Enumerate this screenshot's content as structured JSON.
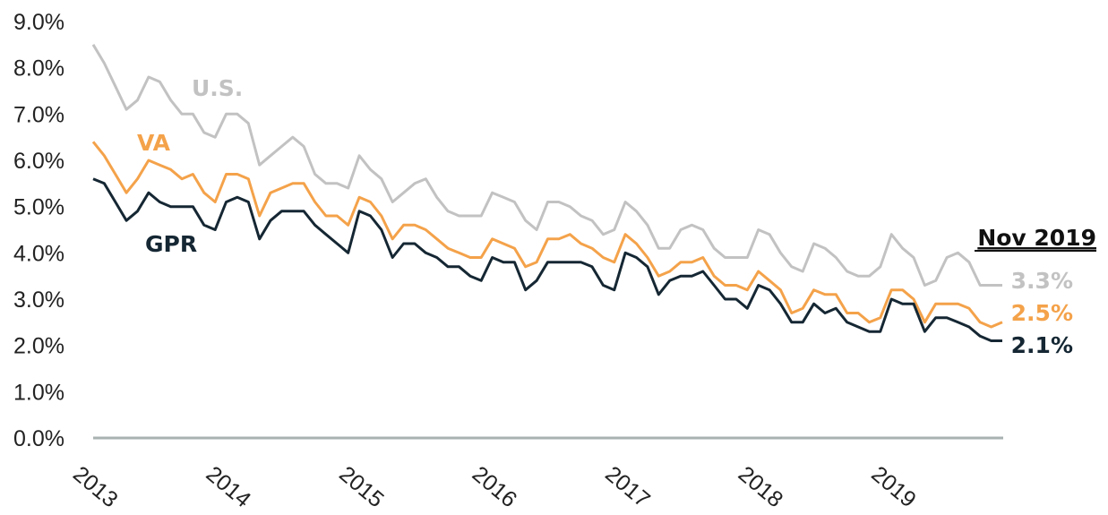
{
  "chart_data": {
    "type": "line",
    "title": "",
    "xlabel": "",
    "ylabel": "",
    "x_start": "2013-01",
    "x_end": "2019-11",
    "x_ticks": [
      "2013",
      "2014",
      "2015",
      "2016",
      "2017",
      "2018",
      "2019"
    ],
    "y_ticks": [
      "0.0%",
      "1.0%",
      "2.0%",
      "3.0%",
      "4.0%",
      "5.0%",
      "6.0%",
      "7.0%",
      "8.0%",
      "9.0%"
    ],
    "ylim": [
      0,
      9
    ],
    "grid": false,
    "date_label": "Nov 2019",
    "series": [
      {
        "name": "U.S.",
        "color": "#c2c2c2",
        "end_label": "3.3%",
        "values": [
          8.5,
          8.1,
          7.6,
          7.1,
          7.3,
          7.8,
          7.7,
          7.3,
          7.0,
          7.0,
          6.6,
          6.5,
          7.0,
          7.0,
          6.8,
          5.9,
          6.1,
          6.3,
          6.5,
          6.3,
          5.7,
          5.5,
          5.5,
          5.4,
          6.1,
          5.8,
          5.6,
          5.1,
          5.3,
          5.5,
          5.6,
          5.2,
          4.9,
          4.8,
          4.8,
          4.8,
          5.3,
          5.2,
          5.1,
          4.7,
          4.5,
          5.1,
          5.1,
          5.0,
          4.8,
          4.7,
          4.4,
          4.5,
          5.1,
          4.9,
          4.6,
          4.1,
          4.1,
          4.5,
          4.6,
          4.5,
          4.1,
          3.9,
          3.9,
          3.9,
          4.5,
          4.4,
          4.0,
          3.7,
          3.6,
          4.2,
          4.1,
          3.9,
          3.6,
          3.5,
          3.5,
          3.7,
          4.4,
          4.1,
          3.9,
          3.3,
          3.4,
          3.9,
          4.0,
          3.8,
          3.3,
          3.3,
          3.3
        ]
      },
      {
        "name": "VA",
        "color": "#f4a24a",
        "end_label": "2.5%",
        "values": [
          6.4,
          6.1,
          5.7,
          5.3,
          5.6,
          6.0,
          5.9,
          5.8,
          5.6,
          5.7,
          5.3,
          5.1,
          5.7,
          5.7,
          5.6,
          4.8,
          5.3,
          5.4,
          5.5,
          5.5,
          5.1,
          4.8,
          4.8,
          4.6,
          5.2,
          5.1,
          4.8,
          4.3,
          4.6,
          4.6,
          4.5,
          4.3,
          4.1,
          4.0,
          3.9,
          3.9,
          4.3,
          4.2,
          4.1,
          3.7,
          3.8,
          4.3,
          4.3,
          4.4,
          4.2,
          4.1,
          3.9,
          3.8,
          4.4,
          4.2,
          3.9,
          3.5,
          3.6,
          3.8,
          3.8,
          3.9,
          3.5,
          3.3,
          3.3,
          3.2,
          3.6,
          3.4,
          3.2,
          2.7,
          2.8,
          3.2,
          3.1,
          3.1,
          2.7,
          2.7,
          2.5,
          2.6,
          3.2,
          3.2,
          3.0,
          2.5,
          2.9,
          2.9,
          2.9,
          2.8,
          2.5,
          2.4,
          2.5
        ]
      },
      {
        "name": "GPR",
        "color": "#152733",
        "end_label": "2.1%",
        "values": [
          5.6,
          5.5,
          5.1,
          4.7,
          4.9,
          5.3,
          5.1,
          5.0,
          5.0,
          5.0,
          4.6,
          4.5,
          5.1,
          5.2,
          5.1,
          4.3,
          4.7,
          4.9,
          4.9,
          4.9,
          4.6,
          4.4,
          4.2,
          4.0,
          4.9,
          4.8,
          4.5,
          3.9,
          4.2,
          4.2,
          4.0,
          3.9,
          3.7,
          3.7,
          3.5,
          3.4,
          3.9,
          3.8,
          3.8,
          3.2,
          3.4,
          3.8,
          3.8,
          3.8,
          3.8,
          3.7,
          3.3,
          3.2,
          4.0,
          3.9,
          3.7,
          3.1,
          3.4,
          3.5,
          3.5,
          3.6,
          3.3,
          3.0,
          3.0,
          2.8,
          3.3,
          3.2,
          2.9,
          2.5,
          2.5,
          2.9,
          2.7,
          2.8,
          2.5,
          2.4,
          2.3,
          2.3,
          3.0,
          2.9,
          2.9,
          2.3,
          2.6,
          2.6,
          2.5,
          2.4,
          2.2,
          2.1,
          2.1
        ]
      }
    ]
  }
}
